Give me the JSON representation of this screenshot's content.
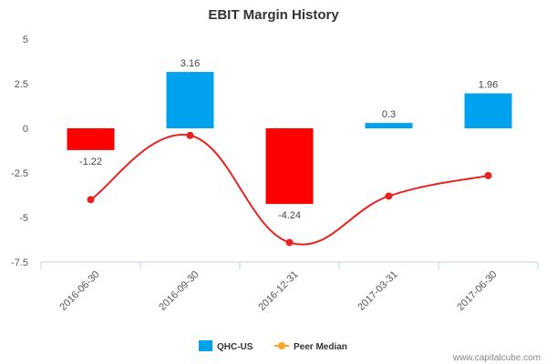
{
  "chart_data": {
    "type": "bar",
    "title": "EBIT Margin History",
    "categories": [
      "2016-06-30",
      "2016-09-30",
      "2016-12-31",
      "2017-03-31",
      "2017-06-30"
    ],
    "series": [
      {
        "name": "QHC-US",
        "kind": "bar",
        "values": [
          -1.22,
          3.16,
          -4.24,
          0.3,
          1.96
        ],
        "data_labels": [
          "-1.22",
          "3.16",
          "-4.24",
          "0.3",
          "1.96"
        ],
        "positive_color": "#00a2ed",
        "negative_color": "#ff0000"
      },
      {
        "name": "Peer Median",
        "kind": "line",
        "values": [
          -4.0,
          -0.4,
          -6.4,
          -3.8,
          -2.65
        ],
        "color": "#e8231f",
        "legend_color": "#f5a623"
      }
    ],
    "y_ticks": [
      "5",
      "2.5",
      "0",
      "-2.5",
      "-5",
      "-7.5"
    ],
    "ylim": [
      -7.5,
      5
    ],
    "legend_position": "bottom-center",
    "source_text": "www.capitalcube.com"
  }
}
